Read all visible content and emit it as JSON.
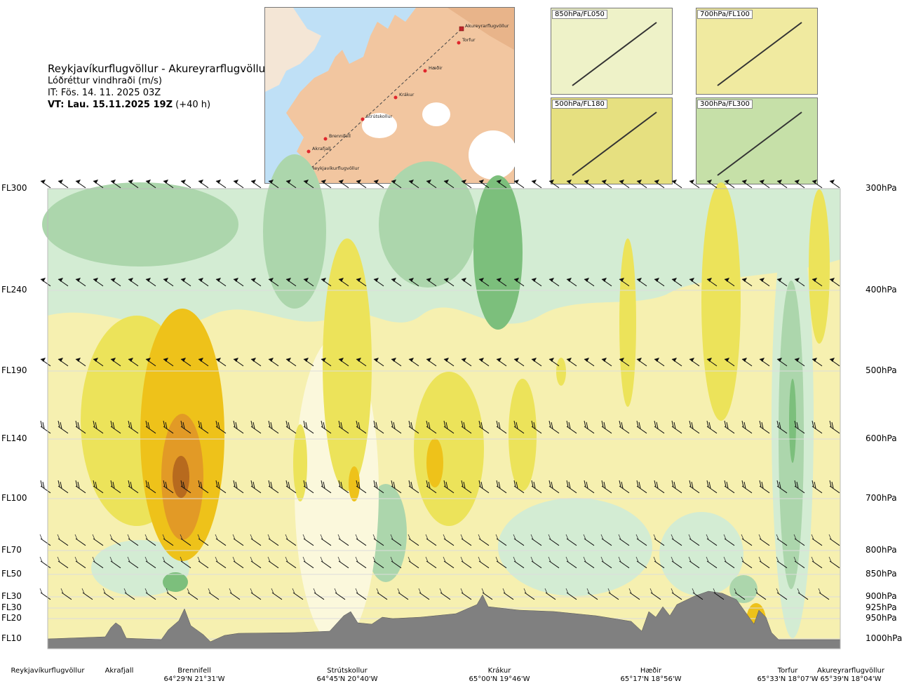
{
  "titles": {
    "route": "Reykjavíkurflugvöllur - Akureyrarflugvöllur",
    "parameter": "Lóðréttur vindhraði (m/s)",
    "initial_time": "IT: Fös. 14. 11. 2025 03Z",
    "valid_time_bold": "VT: Lau. 15.11.2025 19Z",
    "valid_time_offset": "(+40 h)"
  },
  "flight_levels": [
    "FL300",
    "FL240",
    "FL190",
    "FL140",
    "FL100",
    "FL70",
    "FL50",
    "FL30",
    "FL30",
    "FL20",
    "FL10"
  ],
  "pressure_levels": [
    "300hPa",
    "400hPa",
    "500hPa",
    "600hPa",
    "700hPa",
    "800hPa",
    "850hPa",
    "900hPa",
    "925hPa",
    "950hPa",
    "1000hPa"
  ],
  "locations": [
    {
      "name": "Reykjavíkurflugvöllur",
      "coord": ""
    },
    {
      "name": "Akrafjall",
      "coord": ""
    },
    {
      "name": "Brennifell",
      "coord": "64°29'N 21°31'W"
    },
    {
      "name": "Strútskollur",
      "coord": "64°45'N 20°40'W"
    },
    {
      "name": "Krákur",
      "coord": "65°00'N 19°46'W"
    },
    {
      "name": "Hæðir",
      "coord": "65°17'N 18°56'W"
    },
    {
      "name": "Torfur",
      "coord": "65°33'N 18°07'W"
    },
    {
      "name": "Akureyrarflugvöllur",
      "coord": "65°39'N 18°04'W"
    }
  ],
  "map_labels": [
    "Akureyrarflugvöllur",
    "Torfur",
    "Hæðir",
    "Krákur",
    "Strútskollur",
    "Brennifell",
    "Akrafjall",
    "Reykjavíkurflugvöllur"
  ],
  "insets": [
    "850hPa/FL050",
    "700hPa/FL100",
    "500hPa/FL180",
    "300hPa/FL300"
  ],
  "colors": {
    "terrain": "#808080",
    "green_light": "#d3ecd3",
    "green_mid": "#acd6ac",
    "green_dark": "#7cbf7c",
    "yellow_pale": "#f6f0b0",
    "yellow": "#ece35a",
    "gold": "#eec21a",
    "orange": "#e29a26",
    "brown": "#b76a1e"
  },
  "chart_data": {
    "type": "heatmap",
    "title": "Lóðréttur vindhraði (m/s)",
    "x_categories": [
      "Reykjavíkurflugvöllur",
      "Akrafjall",
      "Brennifell",
      "Strútskollur",
      "Krákur",
      "Hæðir",
      "Torfur",
      "Akureyrarflugvöllur"
    ],
    "y_levels_hPa": [
      300,
      400,
      500,
      600,
      700,
      800,
      850,
      900,
      925,
      950,
      1000
    ],
    "y_flight_levels": [
      "FL300",
      "FL240",
      "FL190",
      "FL140",
      "FL100",
      "FL70",
      "FL50",
      "FL30",
      "FL30",
      "FL20",
      "FL10"
    ],
    "ylim_hPa": [
      1000,
      300
    ],
    "features": [
      {
        "location": "Brennifell",
        "sign": "updraft",
        "strongest": "orange-brown",
        "levels_hPa": [
          500,
          800
        ]
      },
      {
        "location": "Strútskollur",
        "sign": "updraft",
        "strongest": "gold",
        "levels_hPa": [
          400,
          750
        ]
      },
      {
        "location": "Krákur",
        "sign": "updraft",
        "strongest": "gold",
        "levels_hPa": [
          500,
          750
        ]
      },
      {
        "location": "Krákur",
        "sign": "downdraft",
        "strongest": "green",
        "levels_hPa": [
          300,
          450
        ]
      },
      {
        "location": "Torfur",
        "sign": "downdraft",
        "strongest": "green",
        "levels_hPa": [
          300,
          950
        ]
      }
    ],
    "grid": true,
    "wind_barbs": true
  }
}
